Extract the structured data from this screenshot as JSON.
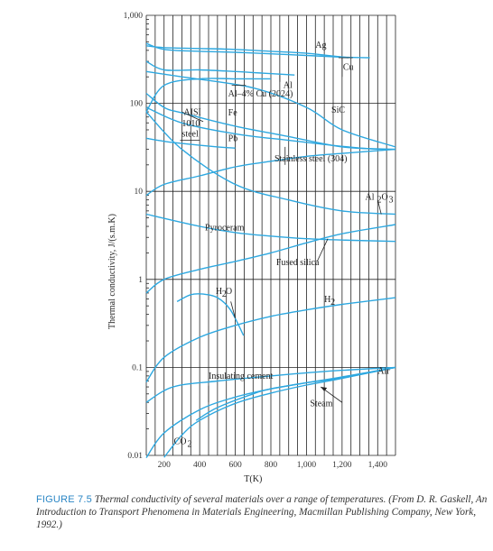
{
  "chart_data": {
    "type": "line",
    "xlabel": "T(K)",
    "ylabel": "Thermal conductivity, J/(s.m.K)",
    "xlim": [
      100,
      1500
    ],
    "ylim": [
      0.01,
      1000
    ],
    "y_scale": "log",
    "grid": true,
    "x_ticks": [
      "200",
      "400",
      "600",
      "800",
      "1,000",
      "1,200",
      "1,400"
    ],
    "y_ticks": [
      "1,000",
      "100",
      "10",
      "1",
      "0.1",
      "0.01"
    ],
    "series": [
      {
        "name": "Ag",
        "x": [
          100,
          200,
          400,
          600,
          800,
          1000,
          1234
        ],
        "y": [
          450,
          430,
          420,
          410,
          390,
          370,
          330
        ]
      },
      {
        "name": "Cu",
        "x": [
          100,
          200,
          400,
          600,
          800,
          1000,
          1200,
          1356
        ],
        "y": [
          480,
          410,
          390,
          380,
          365,
          350,
          335,
          330
        ]
      },
      {
        "name": "Al",
        "x": [
          100,
          200,
          400,
          600,
          760,
          933
        ],
        "y": [
          300,
          240,
          240,
          230,
          220,
          210
        ]
      },
      {
        "name": "Al–4% Cu (2024)",
        "x": [
          100,
          200,
          400,
          600,
          800
        ],
        "y": [
          80,
          160,
          190,
          190,
          190
        ]
      },
      {
        "name": "AISI 1010 steel",
        "x": [
          100,
          300,
          600,
          900,
          1300,
          1500
        ],
        "y": [
          90,
          60,
          45,
          38,
          31,
          30
        ]
      },
      {
        "name": "Fe",
        "x": [
          100,
          200,
          300,
          600,
          900,
          1200,
          1500
        ],
        "y": [
          130,
          90,
          78,
          55,
          42,
          32,
          30
        ]
      },
      {
        "name": "Pb",
        "x": [
          100,
          200,
          300,
          500,
          600
        ],
        "y": [
          40,
          37,
          35,
          32,
          31
        ]
      },
      {
        "name": "SiC",
        "x": [
          100,
          300,
          700,
          1000,
          1200,
          1500
        ],
        "y": [
          230,
          200,
          150,
          90,
          50,
          32
        ]
      },
      {
        "name": "Stainless steel (304)",
        "x": [
          100,
          200,
          400,
          600,
          800,
          1000,
          1200,
          1500
        ],
        "y": [
          9,
          12,
          15,
          19,
          22,
          25,
          27,
          30
        ]
      },
      {
        "name": "Al2O3",
        "x": [
          100,
          300,
          600,
          900,
          1200,
          1500
        ],
        "y": [
          80,
          30,
          12,
          8,
          6,
          5.5
        ]
      },
      {
        "name": "Pyroceram",
        "x": [
          100,
          400,
          600,
          800,
          1000,
          1200,
          1500
        ],
        "y": [
          5.5,
          4,
          3.4,
          3.1,
          2.9,
          2.8,
          2.7
        ]
      },
      {
        "name": "Fused silica",
        "x": [
          100,
          200,
          400,
          600,
          800,
          1000,
          1200,
          1500
        ],
        "y": [
          0.7,
          1.0,
          1.3,
          1.6,
          2.0,
          2.6,
          3.3,
          4.2
        ]
      },
      {
        "name": "H2O",
        "x": [
          273,
          350,
          420,
          500,
          573,
          647
        ],
        "y": [
          0.56,
          0.67,
          0.68,
          0.62,
          0.45,
          0.23
        ]
      },
      {
        "name": "H2",
        "x": [
          100,
          200,
          400,
          600,
          800,
          1000,
          1200,
          1500
        ],
        "y": [
          0.068,
          0.13,
          0.22,
          0.3,
          0.38,
          0.45,
          0.52,
          0.62
        ]
      },
      {
        "name": "Insulating cement",
        "x": [
          100,
          250,
          500,
          800,
          1100,
          1500
        ],
        "y": [
          0.04,
          0.06,
          0.07,
          0.08,
          0.09,
          0.1
        ]
      },
      {
        "name": "Air",
        "x": [
          100,
          200,
          400,
          600,
          800,
          1000,
          1200,
          1500
        ],
        "y": [
          0.0094,
          0.018,
          0.033,
          0.046,
          0.057,
          0.067,
          0.076,
          0.1
        ]
      },
      {
        "name": "Steam",
        "x": [
          380,
          500,
          700,
          800,
          1000,
          1200,
          1500
        ],
        "y": [
          0.025,
          0.035,
          0.05,
          0.057,
          0.067,
          0.078,
          0.1
        ]
      },
      {
        "name": "CO2",
        "x": [
          200,
          300,
          400,
          600,
          800,
          1000,
          1200,
          1500
        ],
        "y": [
          0.0095,
          0.017,
          0.025,
          0.039,
          0.051,
          0.063,
          0.075,
          0.1
        ]
      }
    ],
    "labels": {
      "Ag": "Ag",
      "Cu": "Cu",
      "Al": "Al",
      "Al_Cu": "Al–4% Cu (2024)",
      "AISI_1": "AISI",
      "AISI_2": "1010",
      "AISI_3": "steel",
      "Fe": "Fe",
      "Pb": "Pb",
      "SiC": "SiC",
      "Stainless": "Stainless steel (304)",
      "Al2O3": "Al",
      "Al2O3_sub1": "2",
      "Al2O3_mid": "O",
      "Al2O3_sub2": "3",
      "Pyroceram": "Pyroceram",
      "Fused": "Fused silica",
      "H2O": "H",
      "H2O_sub": "2",
      "H2O_end": "O",
      "H2": "H",
      "H2_sub": "2",
      "Cement": "Insulating cement",
      "Air": "Air",
      "Steam": "Steam",
      "CO2": "CO",
      "CO2_sub": "2"
    }
  },
  "caption": {
    "figure_no": "FIGURE 7.5",
    "text": " Thermal conductivity of several materials over a range of temperatures. (From D. R. Gaskell, An Introduction to Transport Phenomena in Materials Engineering, Macmillan Publishing Company, New York, 1992.)"
  },
  "colors": {
    "curve": "#2ea8e0",
    "grid": "#222222",
    "caption_head": "#2a86c5"
  }
}
